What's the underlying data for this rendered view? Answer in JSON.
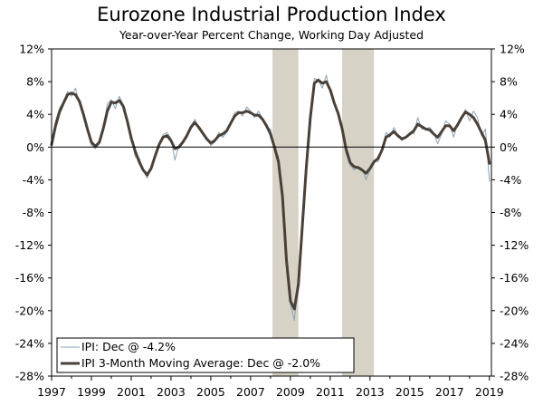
{
  "chart_data": {
    "type": "line",
    "title": "Eurozone Industrial Production Index",
    "subtitle": "Year-over-Year Percent Change, Working Day Adjusted",
    "xlim": [
      1997,
      2019.1
    ],
    "ylim": [
      -28,
      12
    ],
    "y_ticks": [
      12,
      8,
      4,
      0,
      -4,
      -8,
      -12,
      -16,
      -20,
      -24,
      -28
    ],
    "y_tick_labels": [
      "12%",
      "8%",
      "4%",
      "0%",
      "-4%",
      "-8%",
      "-12%",
      "-16%",
      "-20%",
      "-24%",
      "-28%"
    ],
    "x_ticks": [
      1997,
      1999,
      2001,
      2003,
      2005,
      2007,
      2009,
      2011,
      2013,
      2015,
      2017,
      2019
    ],
    "x_tick_labels": [
      "1997",
      "1999",
      "2001",
      "2003",
      "2005",
      "2007",
      "2009",
      "2011",
      "2013",
      "2015",
      "2017",
      "2019"
    ],
    "recessions": [
      [
        2008.1,
        2009.4
      ],
      [
        2011.6,
        2013.2
      ]
    ],
    "colors": {
      "ipi": "#8aa3b5",
      "ma": "#4a4038",
      "recession": "#d6d2c6",
      "axis": "#000000"
    },
    "series": [
      {
        "name": "IPI: Dec @ -4.2%",
        "style": "thin",
        "x": [
          1997.0,
          1997.2,
          1997.4,
          1997.6,
          1997.8,
          1998.0,
          1998.2,
          1998.4,
          1998.6,
          1998.8,
          1999.0,
          1999.2,
          1999.4,
          1999.6,
          1999.8,
          2000.0,
          2000.2,
          2000.4,
          2000.6,
          2000.8,
          2001.0,
          2001.2,
          2001.4,
          2001.6,
          2001.8,
          2002.0,
          2002.2,
          2002.4,
          2002.6,
          2002.8,
          2003.0,
          2003.2,
          2003.4,
          2003.6,
          2003.8,
          2004.0,
          2004.2,
          2004.4,
          2004.6,
          2004.8,
          2005.0,
          2005.2,
          2005.4,
          2005.6,
          2005.8,
          2006.0,
          2006.2,
          2006.4,
          2006.6,
          2006.8,
          2007.0,
          2007.2,
          2007.4,
          2007.6,
          2007.8,
          2008.0,
          2008.2,
          2008.4,
          2008.6,
          2008.8,
          2009.0,
          2009.2,
          2009.4,
          2009.6,
          2009.8,
          2010.0,
          2010.2,
          2010.4,
          2010.6,
          2010.8,
          2011.0,
          2011.2,
          2011.4,
          2011.6,
          2011.8,
          2012.0,
          2012.2,
          2012.4,
          2012.6,
          2012.8,
          2013.0,
          2013.2,
          2013.4,
          2013.6,
          2013.8,
          2014.0,
          2014.2,
          2014.4,
          2014.6,
          2014.8,
          2015.0,
          2015.2,
          2015.4,
          2015.6,
          2015.8,
          2016.0,
          2016.2,
          2016.4,
          2016.6,
          2016.8,
          2017.0,
          2017.2,
          2017.4,
          2017.6,
          2017.8,
          2018.0,
          2018.2,
          2018.4,
          2018.6,
          2018.8,
          2019.0
        ],
        "values": [
          0.2,
          3.2,
          4.8,
          5.5,
          6.8,
          6.2,
          7.2,
          5.2,
          4.3,
          2.2,
          0.2,
          -0.2,
          0.4,
          2.2,
          5.3,
          5.8,
          4.7,
          6.2,
          5.2,
          3.2,
          1.2,
          -1.2,
          -1.3,
          -2.8,
          -3.8,
          -2.5,
          -0.8,
          0.4,
          1.5,
          1.8,
          1.1,
          -1.6,
          0.2,
          0.8,
          1.4,
          2.6,
          3.4,
          2.2,
          1.6,
          1.2,
          0.2,
          0.6,
          1.8,
          1.2,
          1.8,
          2.8,
          4.2,
          4.4,
          3.8,
          4.9,
          4.4,
          3.6,
          4.4,
          3.5,
          2.4,
          2.2,
          -0.2,
          -1.2,
          -6.2,
          -14.8,
          -19.2,
          -21.2,
          -16.2,
          -9.2,
          -2.2,
          3.8,
          8.4,
          8.2,
          7.2,
          8.8,
          6.8,
          5.2,
          4.2,
          2.8,
          -0.8,
          -2.2,
          -2.8,
          -2.4,
          -2.6,
          -4.0,
          -2.8,
          -1.6,
          -1.8,
          -0.6,
          1.8,
          1.2,
          2.4,
          1.4,
          0.8,
          1.2,
          1.8,
          1.6,
          3.6,
          2.2,
          2.2,
          2.4,
          1.8,
          0.4,
          1.6,
          3.2,
          2.8,
          1.2,
          2.8,
          3.6,
          4.6,
          3.2,
          4.4,
          3.6,
          1.4,
          2.2,
          -4.2
        ]
      },
      {
        "name": "IPI 3-Month Moving Average: Dec @ -2.0%",
        "style": "thick",
        "x": [
          1997.0,
          1997.2,
          1997.4,
          1997.6,
          1997.8,
          1998.0,
          1998.2,
          1998.4,
          1998.6,
          1998.8,
          1999.0,
          1999.2,
          1999.4,
          1999.6,
          1999.8,
          2000.0,
          2000.2,
          2000.4,
          2000.6,
          2000.8,
          2001.0,
          2001.2,
          2001.4,
          2001.6,
          2001.8,
          2002.0,
          2002.2,
          2002.4,
          2002.6,
          2002.8,
          2003.0,
          2003.2,
          2003.4,
          2003.6,
          2003.8,
          2004.0,
          2004.2,
          2004.4,
          2004.6,
          2004.8,
          2005.0,
          2005.2,
          2005.4,
          2005.6,
          2005.8,
          2006.0,
          2006.2,
          2006.4,
          2006.6,
          2006.8,
          2007.0,
          2007.2,
          2007.4,
          2007.6,
          2007.8,
          2008.0,
          2008.2,
          2008.4,
          2008.6,
          2008.8,
          2009.0,
          2009.2,
          2009.4,
          2009.6,
          2009.8,
          2010.0,
          2010.2,
          2010.4,
          2010.6,
          2010.8,
          2011.0,
          2011.2,
          2011.4,
          2011.6,
          2011.8,
          2012.0,
          2012.2,
          2012.4,
          2012.6,
          2012.8,
          2013.0,
          2013.2,
          2013.4,
          2013.6,
          2013.8,
          2014.0,
          2014.2,
          2014.4,
          2014.6,
          2014.8,
          2015.0,
          2015.2,
          2015.4,
          2015.6,
          2015.8,
          2016.0,
          2016.2,
          2016.4,
          2016.6,
          2016.8,
          2017.0,
          2017.2,
          2017.4,
          2017.6,
          2017.8,
          2018.0,
          2018.2,
          2018.4,
          2018.6,
          2018.8,
          2019.0
        ],
        "values": [
          0.3,
          2.6,
          4.3,
          5.4,
          6.4,
          6.6,
          6.4,
          5.6,
          4.0,
          2.2,
          0.6,
          0.1,
          0.6,
          2.3,
          4.4,
          5.5,
          5.4,
          5.7,
          5.0,
          3.2,
          1.1,
          -0.5,
          -1.8,
          -2.8,
          -3.4,
          -2.6,
          -1.1,
          0.3,
          1.2,
          1.4,
          0.8,
          -0.2,
          0.0,
          0.6,
          1.4,
          2.4,
          3.0,
          2.4,
          1.7,
          1.0,
          0.5,
          0.8,
          1.4,
          1.6,
          2.0,
          2.9,
          3.8,
          4.2,
          4.2,
          4.4,
          4.2,
          3.9,
          3.9,
          3.4,
          2.6,
          1.6,
          0.0,
          -1.8,
          -6.0,
          -13.8,
          -18.8,
          -19.8,
          -16.8,
          -9.6,
          -2.4,
          3.6,
          7.8,
          8.2,
          7.8,
          8.0,
          7.0,
          5.4,
          4.1,
          2.2,
          -0.3,
          -1.9,
          -2.4,
          -2.5,
          -2.8,
          -3.2,
          -2.6,
          -1.8,
          -1.4,
          -0.4,
          1.2,
          1.5,
          1.9,
          1.4,
          1.0,
          1.2,
          1.6,
          2.0,
          2.8,
          2.5,
          2.2,
          2.1,
          1.6,
          1.2,
          1.9,
          2.6,
          2.6,
          2.0,
          2.7,
          3.6,
          4.3,
          4.0,
          3.6,
          2.8,
          1.8,
          0.8,
          -2.0
        ]
      }
    ],
    "legend": {
      "placement": "bottom-left",
      "entries": [
        "IPI: Dec @ -4.2%",
        "IPI 3-Month Moving Average: Dec @ -2.0%"
      ]
    }
  }
}
